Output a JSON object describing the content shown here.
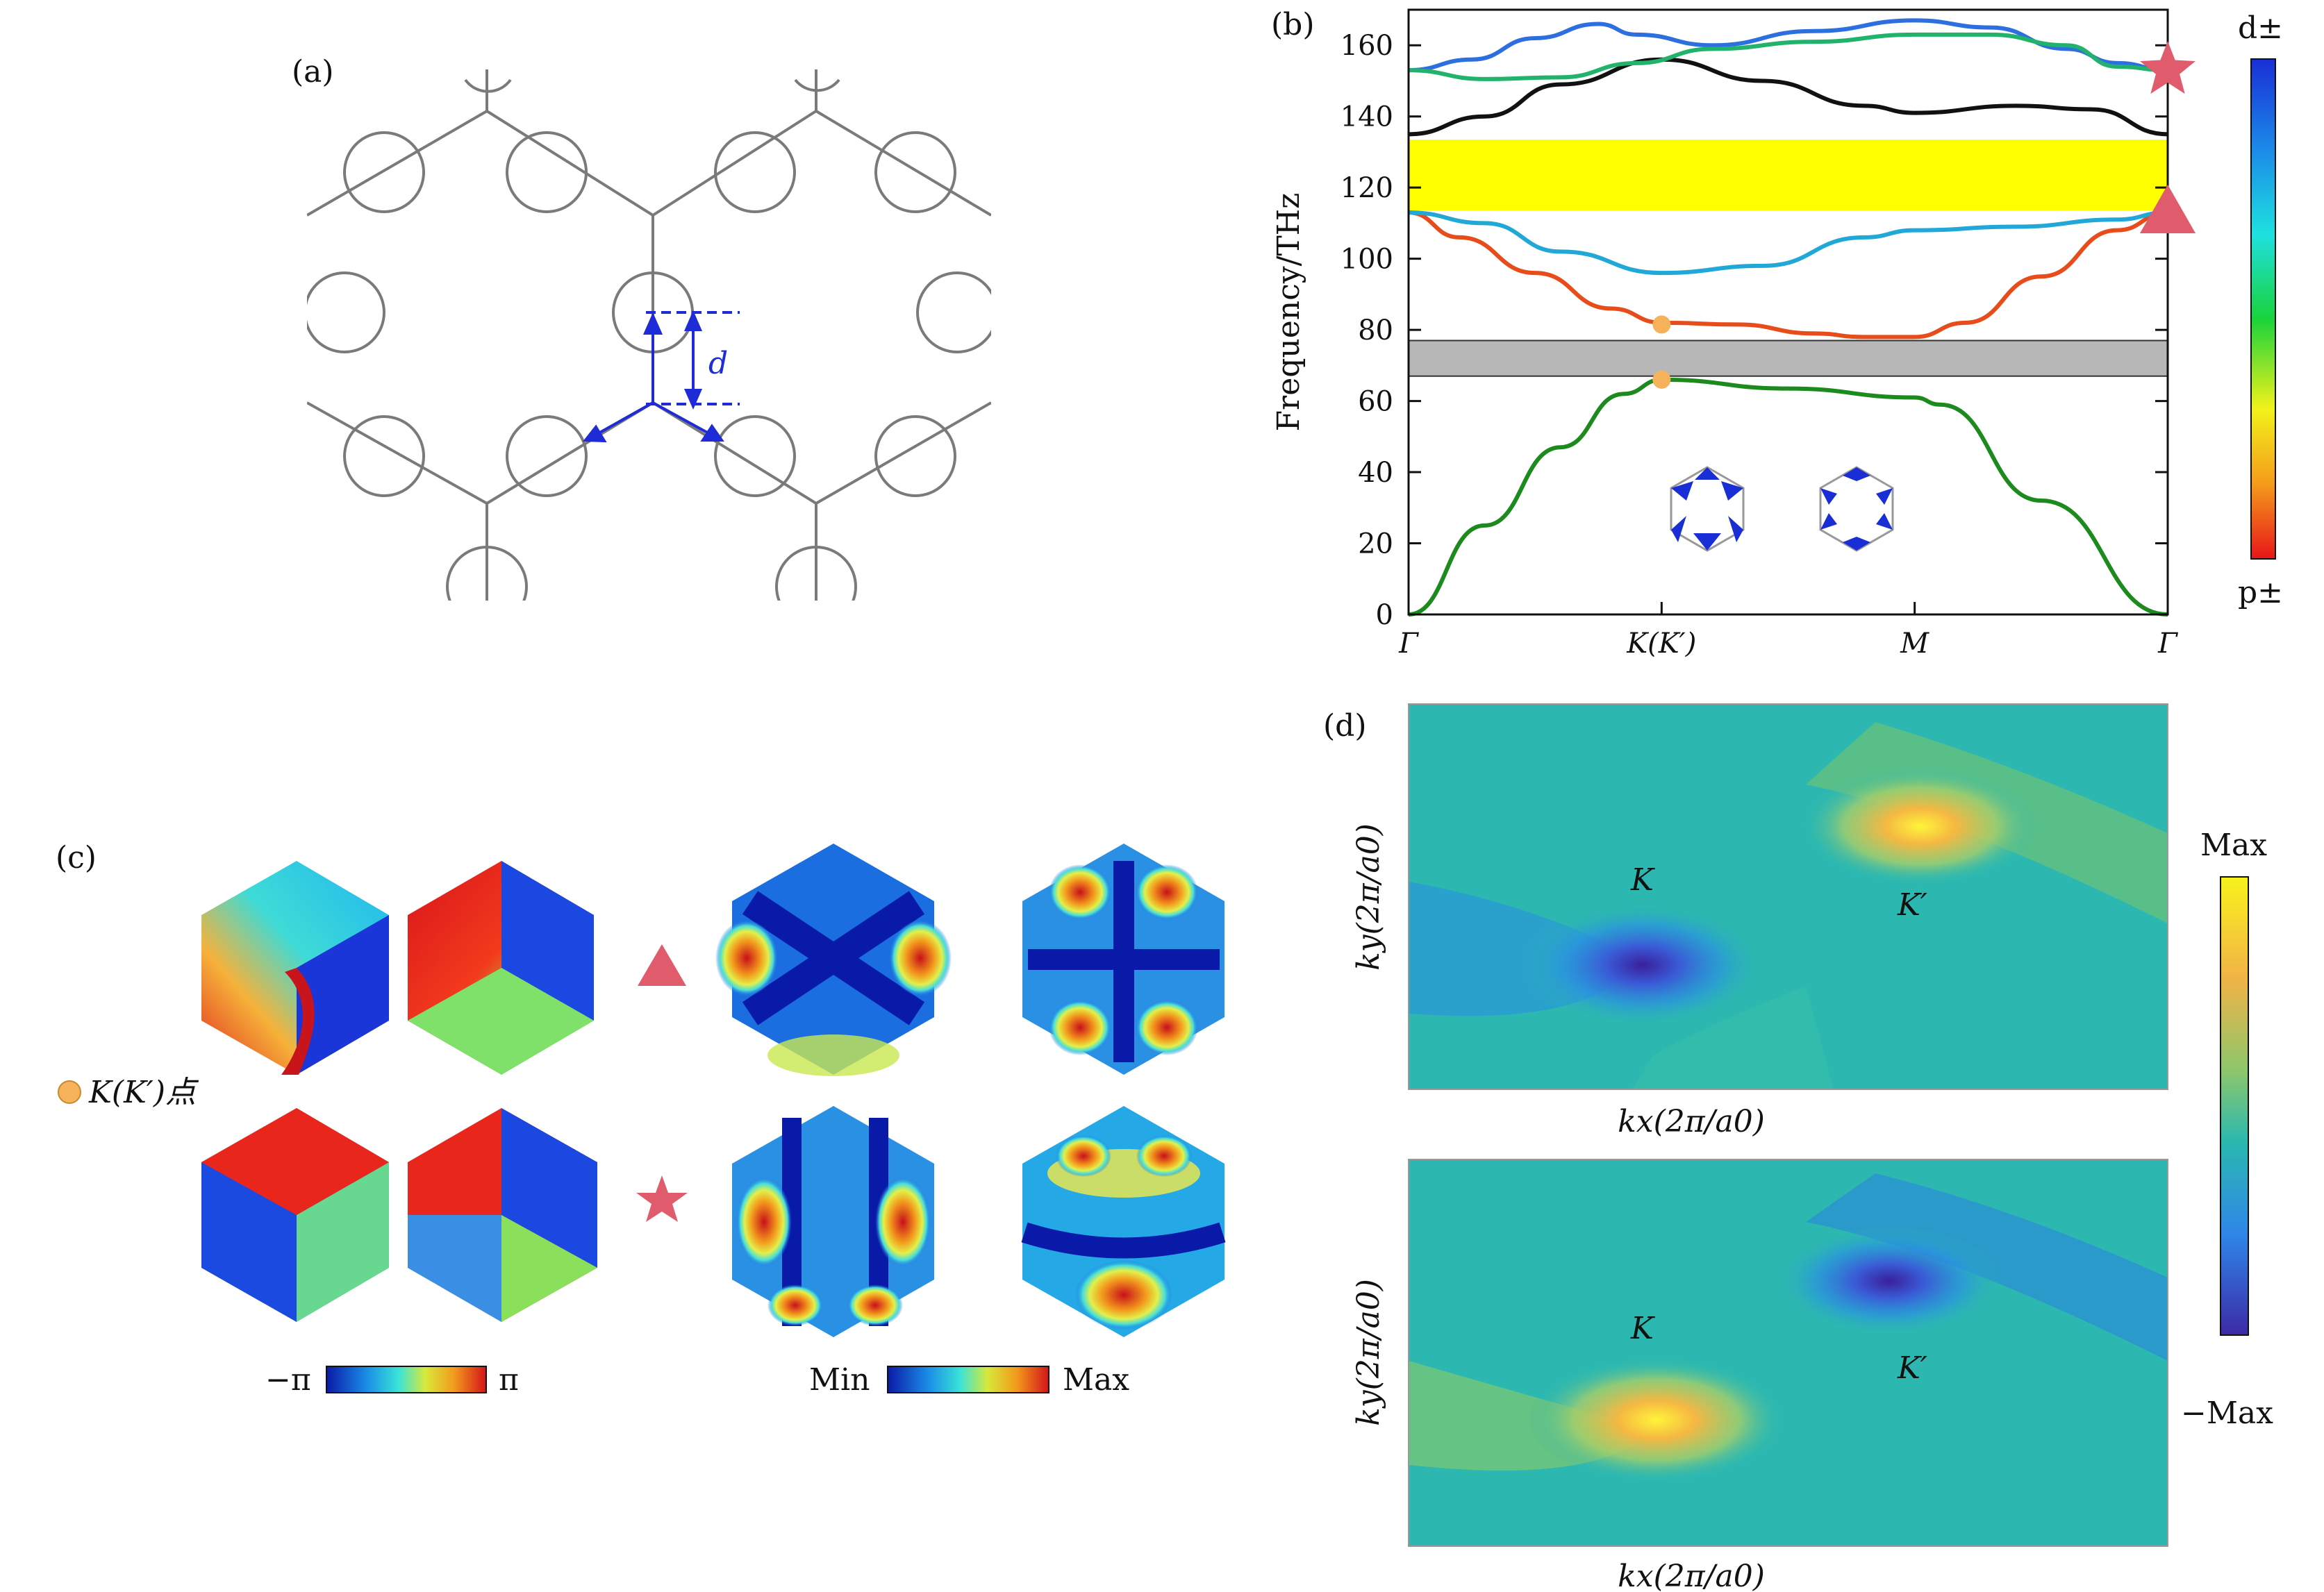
{
  "panels": {
    "a": {
      "label": "(a)",
      "d_label": "d"
    },
    "b": {
      "label": "(b)",
      "legend": {
        "top": "d±",
        "bottom": "p±"
      }
    },
    "c": {
      "label": "(c)",
      "point_label": "K(K′)点",
      "phase_min": "−π",
      "phase_max": "π",
      "amp_min": "Min",
      "amp_max": "Max"
    },
    "d": {
      "label": "(d)",
      "ylabel": "ky(2π/a0)",
      "xlabel": "kx(2π/a0)",
      "k_label": "K",
      "kp_label": "K′",
      "cb_max": "Max",
      "cb_min": "−Max"
    }
  },
  "chart_data": [
    {
      "type": "line",
      "title": "",
      "ylabel": "Frequency/THz",
      "xlabel": "",
      "ylim": [
        0,
        170
      ],
      "x_ticks": [
        "Γ",
        "K(K′)",
        "M",
        "Γ"
      ],
      "x_tick_positions": [
        0,
        1,
        2,
        3
      ],
      "y_ticks": [
        0,
        20,
        40,
        60,
        80,
        100,
        120,
        140,
        160
      ],
      "bandgaps": [
        {
          "range": [
            67,
            77
          ],
          "color": "#b7b7b7"
        },
        {
          "range": [
            113.5,
            133.5
          ],
          "color": "#ffff00"
        }
      ],
      "series": [
        {
          "name": "band1",
          "color": "#1d8a1d",
          "x": [
            0,
            0.3,
            0.6,
            0.85,
            1.0,
            1.5,
            2.0,
            2.1,
            2.5,
            3.0
          ],
          "y": [
            0,
            25,
            47,
            62,
            66,
            63.5,
            61,
            59,
            32,
            0
          ]
        },
        {
          "name": "band2",
          "color": "#e74c1a",
          "x": [
            0,
            0.2,
            0.5,
            0.8,
            1.0,
            1.3,
            1.6,
            1.8,
            2.0,
            2.2,
            2.5,
            2.8,
            3.0
          ],
          "y": [
            113,
            106,
            96,
            86,
            82,
            81.5,
            79,
            78,
            78,
            82,
            95,
            108,
            113
          ]
        },
        {
          "name": "band3",
          "color": "#22a8d6",
          "x": [
            0,
            0.3,
            0.6,
            1.0,
            1.4,
            1.8,
            2.0,
            2.4,
            2.8,
            3.0
          ],
          "y": [
            113,
            110,
            102,
            96,
            98,
            106,
            108,
            109,
            111,
            113
          ]
        },
        {
          "name": "band4",
          "color": "#111111",
          "x": [
            0,
            0.3,
            0.6,
            1.0,
            1.4,
            1.8,
            2.0,
            2.4,
            2.7,
            3.0
          ],
          "y": [
            135,
            140,
            149,
            156,
            150,
            143,
            141,
            143,
            142,
            135
          ]
        },
        {
          "name": "band5",
          "color": "#2e6fe0",
          "x": [
            0,
            0.25,
            0.5,
            0.75,
            0.9,
            1.2,
            1.6,
            2.0,
            2.3,
            2.6,
            2.8,
            3.0
          ],
          "y": [
            153,
            156,
            162,
            166,
            163,
            160,
            164,
            167,
            165,
            159,
            155,
            153
          ]
        },
        {
          "name": "band6",
          "color": "#21b36b",
          "x": [
            0,
            0.3,
            0.6,
            0.9,
            1.2,
            1.6,
            2.0,
            2.3,
            2.6,
            2.8,
            3.0
          ],
          "y": [
            153,
            150.5,
            151,
            155,
            159,
            161,
            163,
            163,
            160,
            154,
            153
          ]
        }
      ],
      "markers": [
        {
          "shape": "circle",
          "x": 1,
          "y": 81.5,
          "color": "#f5b25b"
        },
        {
          "shape": "circle",
          "x": 1,
          "y": 66,
          "color": "#f5b25b"
        },
        {
          "shape": "star",
          "x": 3,
          "y": 153,
          "color": "#e05b6b"
        },
        {
          "shape": "triangle",
          "x": 3,
          "y": 113,
          "color": "#e05b6b"
        }
      ]
    }
  ]
}
